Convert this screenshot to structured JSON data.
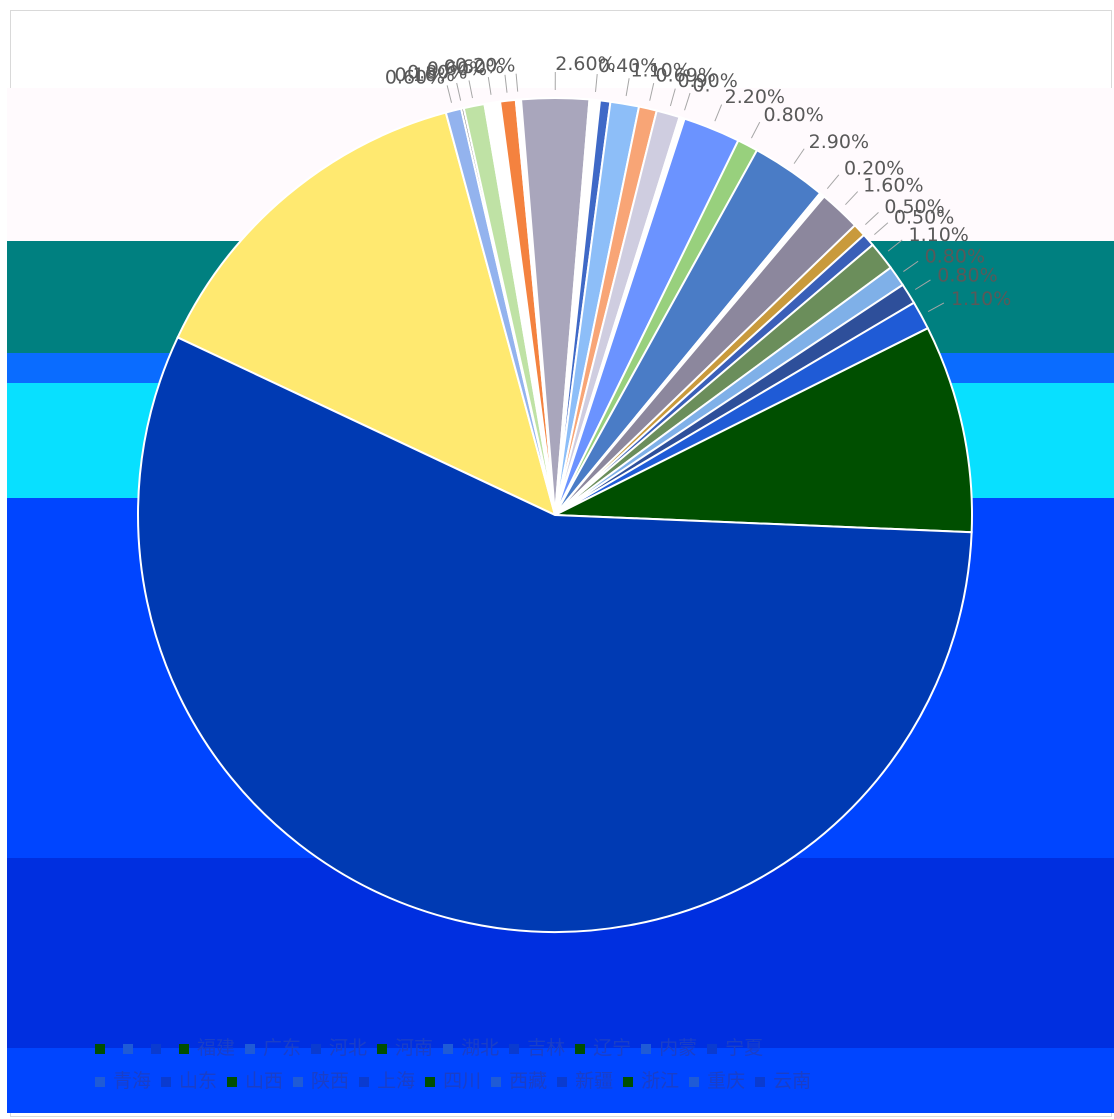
{
  "chart_data": {
    "type": "pie",
    "colors": {
      "band_teal": "#008080",
      "band_dark_green": "#004f00",
      "band_blue": "#0a6cff",
      "band_cyan": "#08e0ff",
      "band_royal": "#0045ff",
      "band_navy": "#003ab3",
      "band_deep": "#002fe0",
      "upper_bg": "#fffafd",
      "label_text": "#595959",
      "legend_text": "#1a3fc7"
    },
    "slices": [
      {
        "value": 13.7,
        "label": "",
        "color": "#ffe970"
      },
      {
        "value": 0.6,
        "label": "0.60%",
        "color": "#93b3ee"
      },
      {
        "value": 0.1,
        "label": "0.10%",
        "color": "#7f7f7f"
      },
      {
        "value": 0.8,
        "label": "0.80%",
        "color": "#bfe2a5"
      },
      {
        "value": 0.6,
        "label": "0.60%",
        "color": "#ffffff"
      },
      {
        "value": 0.6,
        "label": "0.60%",
        "color": "#f4823f"
      },
      {
        "value": 0.2,
        "label": "0.20%",
        "color": "#ffffff"
      },
      {
        "value": 2.6,
        "label": "2.60%",
        "color": "#a9a6bc"
      },
      {
        "value": 0.4,
        "label": "0.40%",
        "color": "#ffffff"
      },
      {
        "value": 0.4,
        "label": "",
        "color": "#3f69c7"
      },
      {
        "value": 1.1,
        "label": "1.10%",
        "color": "#8dbef8"
      },
      {
        "value": 0.69,
        "label": "0.69%",
        "color": "#f8a576"
      },
      {
        "value": 0.9,
        "label": "0.90%",
        "color": "#cfcde0"
      },
      {
        "value": 0.2,
        "label": "0.",
        "color": "#ffffff"
      },
      {
        "value": 2.2,
        "label": "2.20%",
        "color": "#6b93ff"
      },
      {
        "value": 0.8,
        "label": "0.80%",
        "color": "#98d07d"
      },
      {
        "value": 2.9,
        "label": "2.90%",
        "color": "#4a7cc6"
      },
      {
        "value": 0.2,
        "label": "0.20%",
        "color": "#ffffff"
      },
      {
        "value": 1.6,
        "label": "1.60%",
        "color": "#8c879d"
      },
      {
        "value": 0.5,
        "label": "0.50%",
        "color": "#c99a3c"
      },
      {
        "value": 0.5,
        "label": "0.50%",
        "color": "#3a5fb8"
      },
      {
        "value": 1.1,
        "label": "1.10%",
        "color": "#6b8e5b"
      },
      {
        "value": 0.8,
        "label": "0.80%",
        "color": "#7fb0e8"
      },
      {
        "value": 0.8,
        "label": "0.80%",
        "color": "#2e4f9a"
      },
      {
        "value": 1.1,
        "label": "1.10%",
        "color": "#1f5bd6"
      },
      {
        "value": 8.0,
        "label": "",
        "color": "#004f00"
      },
      {
        "value": 56.0,
        "label": "",
        "color": "#003ab3"
      }
    ],
    "legend": {
      "placement": "bottom",
      "rows": [
        [
          "",
          "",
          "",
          "福建",
          "广东",
          "河北",
          "河南",
          "湖北",
          "吉林",
          "辽宁",
          "内蒙",
          "宁夏"
        ],
        [
          "青海",
          "山东",
          "山西",
          "陕西",
          "上海",
          "四川",
          "西藏",
          "新疆",
          "浙江",
          "重庆",
          "云南"
        ]
      ]
    }
  }
}
